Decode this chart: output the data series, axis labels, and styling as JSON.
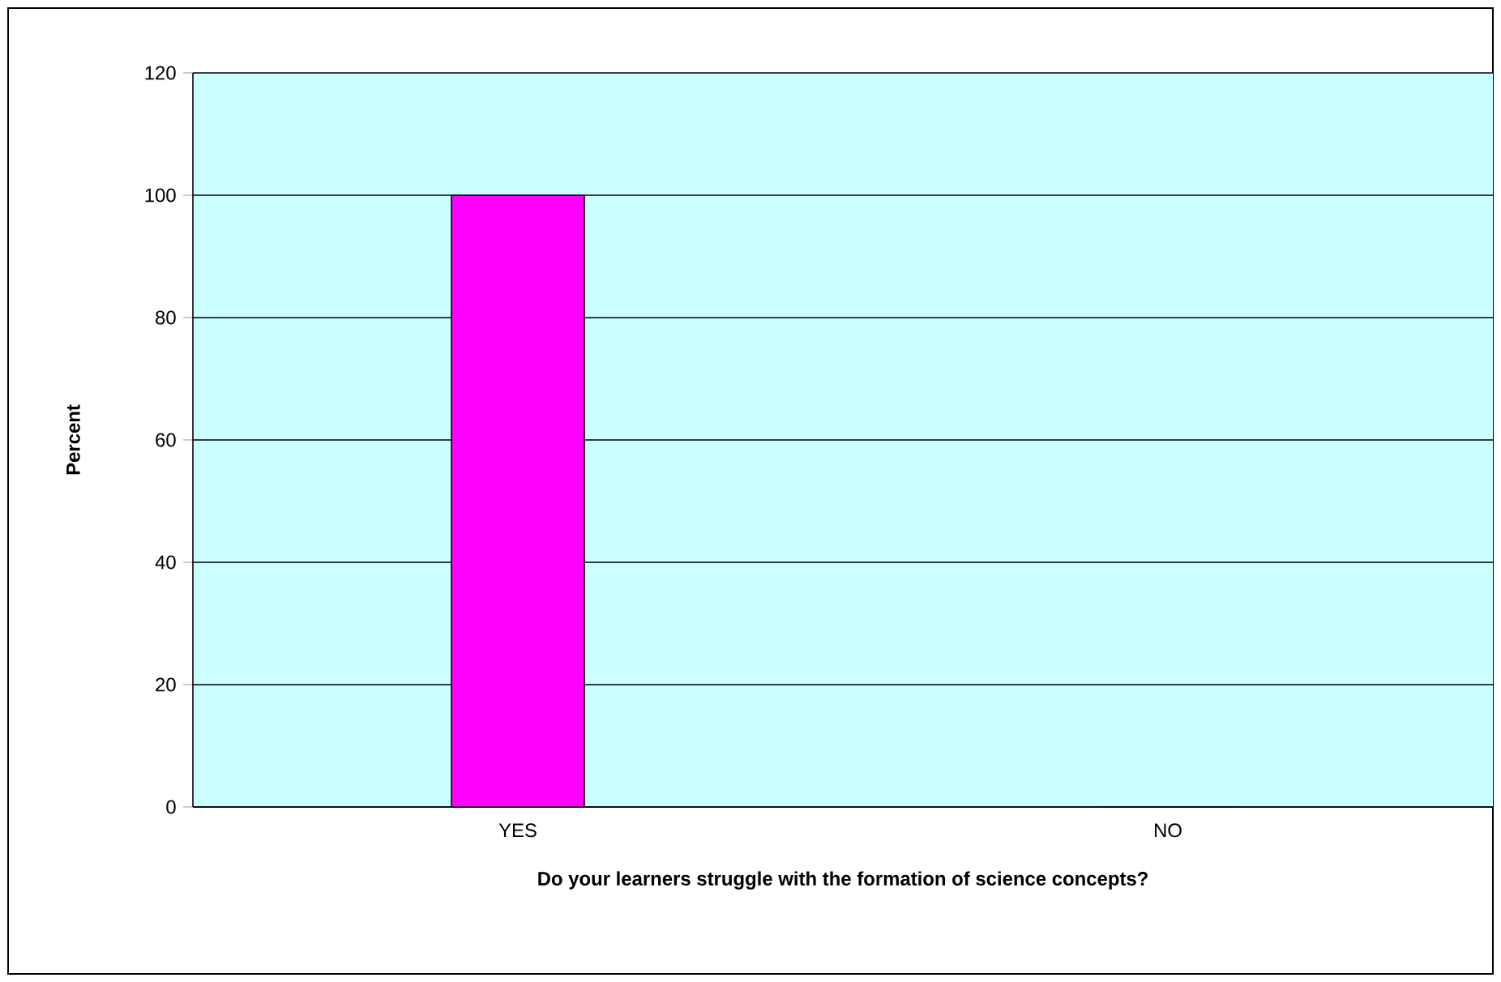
{
  "chart_data": {
    "type": "bar",
    "xlabel": "Do your learners struggle with the formation of science concepts?",
    "ylabel": "Percent",
    "categories": [
      "YES",
      "NO"
    ],
    "values": [
      100,
      0
    ],
    "color": "#ff00ff",
    "ylim": [
      0,
      120
    ],
    "yticks": [
      0,
      20,
      40,
      60,
      80,
      100,
      120
    ],
    "grid": "y"
  }
}
